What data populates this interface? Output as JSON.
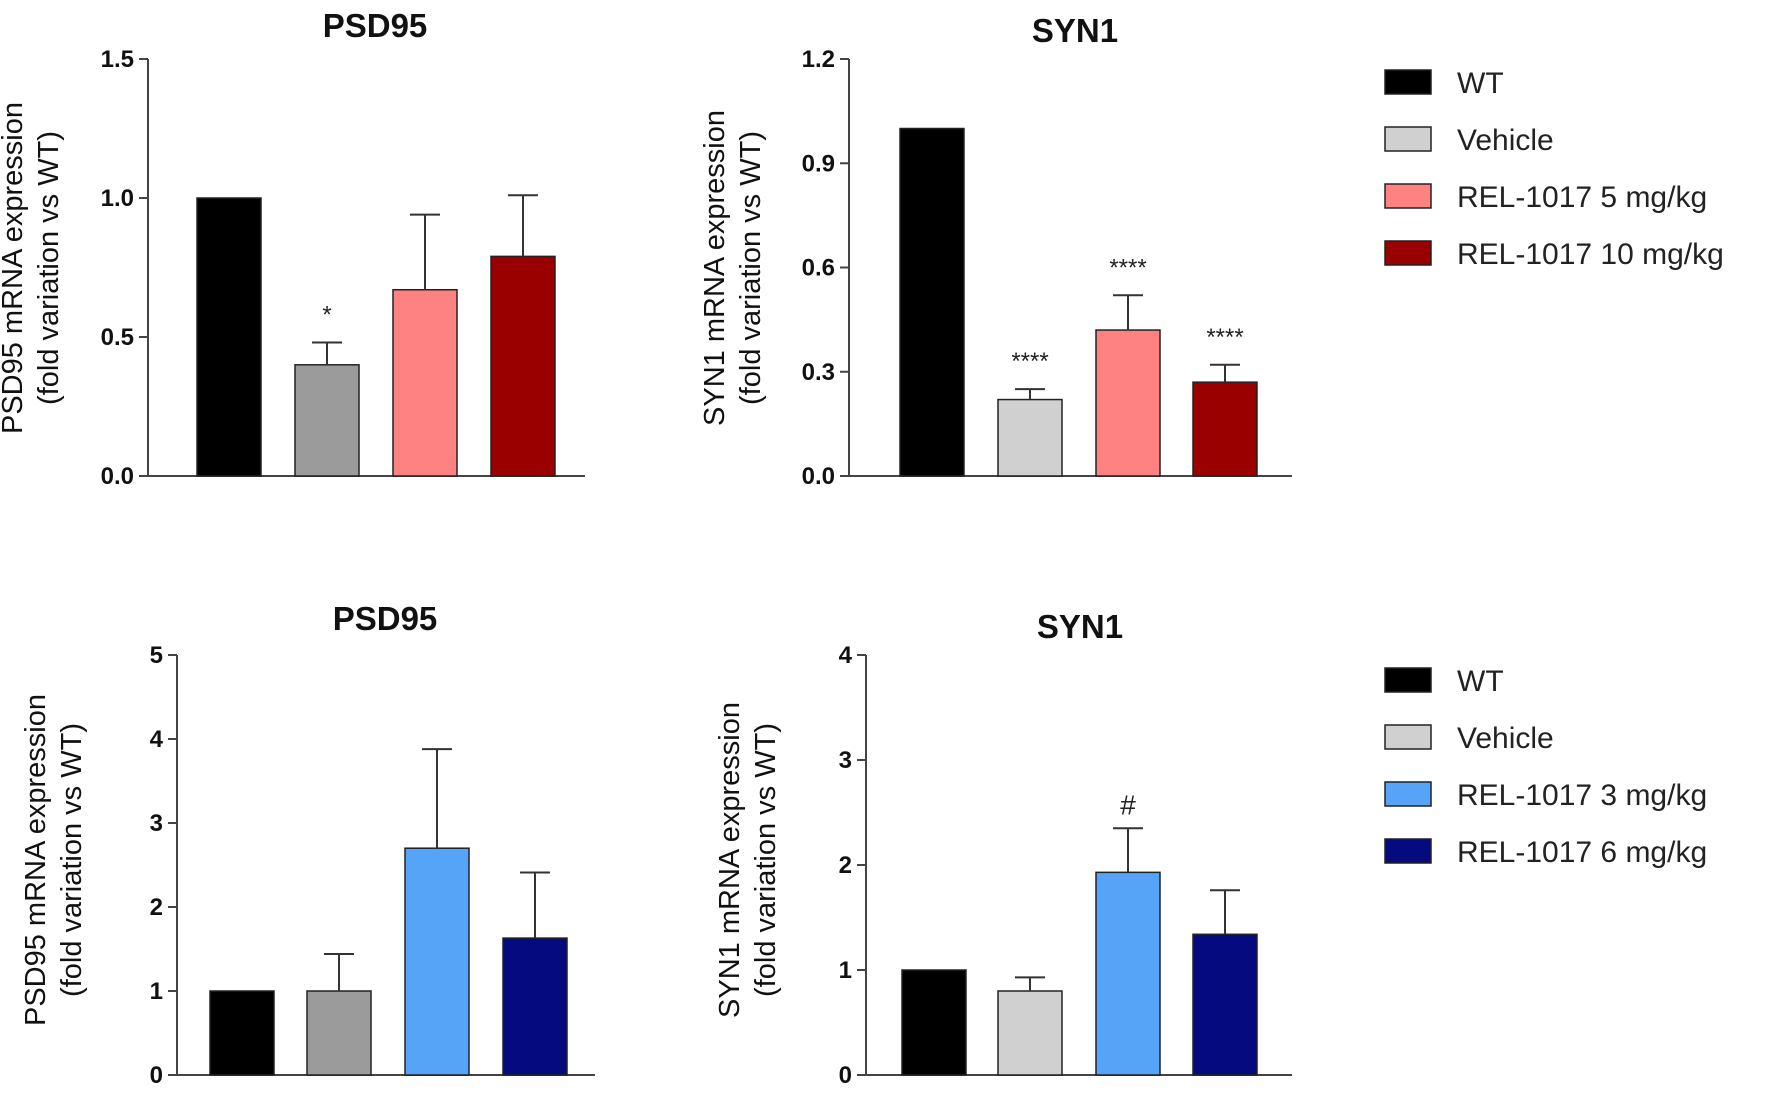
{
  "figure": {
    "legends": [
      {
        "entries": [
          {
            "label": "WT",
            "color": "#000000"
          },
          {
            "label": "Vehicle",
            "color": "#d0d0d0"
          },
          {
            "label": "REL-1017 5 mg/kg",
            "color": "#ff8282"
          },
          {
            "label": "REL-1017 10 mg/kg",
            "color": "#9a0000"
          }
        ]
      },
      {
        "entries": [
          {
            "label": "WT",
            "color": "#000000"
          },
          {
            "label": "Vehicle",
            "color": "#d0d0d0"
          },
          {
            "label": "REL-1017 3 mg/kg",
            "color": "#55a4f7"
          },
          {
            "label": "REL-1017 6 mg/kg",
            "color": "#050b7e"
          }
        ]
      }
    ]
  },
  "chart_data": [
    {
      "type": "bar",
      "title": "PSD95",
      "ylabel": [
        "PSD95 mRNA expression",
        "(fold variation vs WT)"
      ],
      "ylim": [
        0,
        1.5
      ],
      "yticks": [
        "0.0",
        "0.5",
        "1.0",
        "1.5"
      ],
      "categories": [
        "WT",
        "Vehicle",
        "REL-1017 5 mg/kg",
        "REL-1017 10 mg/kg"
      ],
      "values": [
        1.0,
        0.4,
        0.67,
        0.79
      ],
      "errors": [
        0,
        0.08,
        0.27,
        0.22
      ],
      "colors": [
        "#000000",
        "#9b9b9b",
        "#ff8282",
        "#9a0000"
      ],
      "annotations": [
        "",
        "*",
        "",
        ""
      ]
    },
    {
      "type": "bar",
      "title": "SYN1",
      "ylabel": [
        "SYN1 mRNA expression",
        "(fold variation vs WT)"
      ],
      "ylim": [
        0,
        1.2
      ],
      "yticks": [
        "0.0",
        "0.3",
        "0.6",
        "0.9",
        "1.2"
      ],
      "categories": [
        "WT",
        "Vehicle",
        "REL-1017 5 mg/kg",
        "REL-1017 10 mg/kg"
      ],
      "values": [
        1.0,
        0.22,
        0.42,
        0.27
      ],
      "errors": [
        0,
        0.03,
        0.1,
        0.05
      ],
      "colors": [
        "#000000",
        "#d0d0d0",
        "#ff8282",
        "#9a0000"
      ],
      "annotations": [
        "",
        "****",
        "****",
        "****"
      ]
    },
    {
      "type": "bar",
      "title": "PSD95",
      "ylabel": [
        "PSD95 mRNA expression",
        "(fold variation vs WT)"
      ],
      "ylim": [
        0,
        5
      ],
      "yticks": [
        "0",
        "1",
        "2",
        "3",
        "4",
        "5"
      ],
      "categories": [
        "WT",
        "Vehicle",
        "REL-1017 3 mg/kg",
        "REL-1017 6 mg/kg"
      ],
      "values": [
        1.0,
        1.0,
        2.7,
        1.63
      ],
      "errors": [
        0,
        0.44,
        1.18,
        0.78
      ],
      "colors": [
        "#000000",
        "#9b9b9b",
        "#55a4f7",
        "#050b7e"
      ],
      "annotations": [
        "",
        "",
        "",
        ""
      ]
    },
    {
      "type": "bar",
      "title": "SYN1",
      "ylabel": [
        "SYN1 mRNA expression",
        "(fold variation vs WT)"
      ],
      "ylim": [
        0,
        4
      ],
      "yticks": [
        "0",
        "1",
        "2",
        "3",
        "4"
      ],
      "categories": [
        "WT",
        "Vehicle",
        "REL-1017 3 mg/kg",
        "REL-1017 6 mg/kg"
      ],
      "values": [
        1.0,
        0.8,
        1.93,
        1.34
      ],
      "errors": [
        0,
        0.13,
        0.42,
        0.42
      ],
      "colors": [
        "#000000",
        "#d0d0d0",
        "#55a4f7",
        "#050b7e"
      ],
      "annotations": [
        "",
        "",
        "#",
        ""
      ]
    }
  ]
}
